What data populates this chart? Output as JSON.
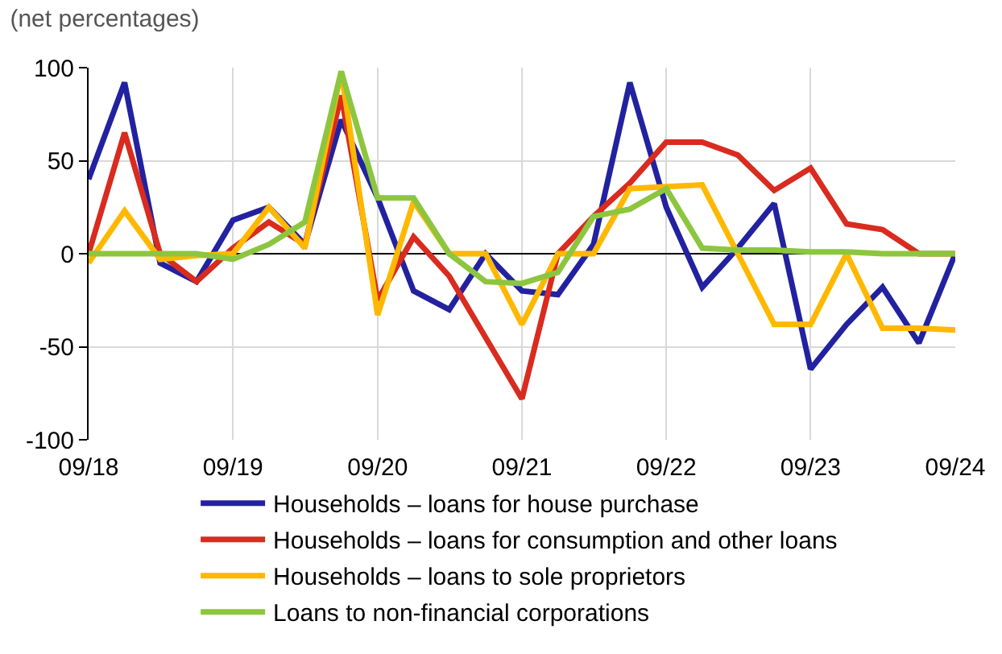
{
  "chart_data": {
    "type": "line",
    "title": "(net percentages)",
    "x": [
      "2018-09",
      "2018-12",
      "2019-03",
      "2019-06",
      "2019-09",
      "2019-12",
      "2020-03",
      "2020-06",
      "2020-09",
      "2020-12",
      "2021-03",
      "2021-06",
      "2021-09",
      "2021-12",
      "2022-03",
      "2022-06",
      "2022-09",
      "2022-12",
      "2023-03",
      "2023-06",
      "2023-09",
      "2023-12",
      "2024-03",
      "2024-06",
      "2024-09"
    ],
    "series": [
      {
        "name": "Households – loans for house purchase",
        "color": "#2222a0",
        "values": [
          40,
          92,
          -5,
          -15,
          18,
          25,
          5,
          72,
          30,
          -20,
          -30,
          0,
          -20,
          -22,
          5,
          92,
          25,
          -18,
          3,
          27,
          -62,
          -38,
          -18,
          -48,
          0
        ]
      },
      {
        "name": "Households – loans for consumption and other loans",
        "color": "#d92b1f",
        "values": [
          0,
          65,
          0,
          -15,
          3,
          17,
          5,
          85,
          -25,
          9,
          -12,
          -45,
          -78,
          0,
          20,
          38,
          60,
          60,
          53,
          34,
          46,
          16,
          13,
          0,
          0
        ]
      },
      {
        "name": "Households – loans to sole proprietors",
        "color": "#ffb800",
        "values": [
          -5,
          23,
          -3,
          -1,
          0,
          25,
          3,
          98,
          -33,
          28,
          0,
          0,
          -38,
          0,
          0,
          35,
          36,
          37,
          0,
          -38,
          -38,
          0,
          -40,
          -40,
          -41
        ]
      },
      {
        "name": "Loans to non-financial corporations",
        "color": "#8cc63f",
        "values": [
          0,
          0,
          0,
          0,
          -3,
          5,
          17,
          98,
          30,
          30,
          0,
          -15,
          -16,
          -10,
          20,
          24,
          35,
          3,
          2,
          2,
          1,
          1,
          0,
          0,
          0
        ]
      }
    ],
    "xlim": [
      "2018-09",
      "2024-09"
    ],
    "xticks": [
      {
        "value": "2018-09",
        "label": "09/18"
      },
      {
        "value": "2019-09",
        "label": "09/19"
      },
      {
        "value": "2020-09",
        "label": "09/20"
      },
      {
        "value": "2021-09",
        "label": "09/21"
      },
      {
        "value": "2022-09",
        "label": "09/22"
      },
      {
        "value": "2023-09",
        "label": "09/23"
      },
      {
        "value": "2024-09",
        "label": "09/24"
      }
    ],
    "ylim": [
      -100,
      100
    ],
    "yticks": [
      -100,
      -50,
      0,
      50,
      100
    ],
    "grid": true,
    "legend": "bottom",
    "marker": "none",
    "line_style": "solid"
  }
}
